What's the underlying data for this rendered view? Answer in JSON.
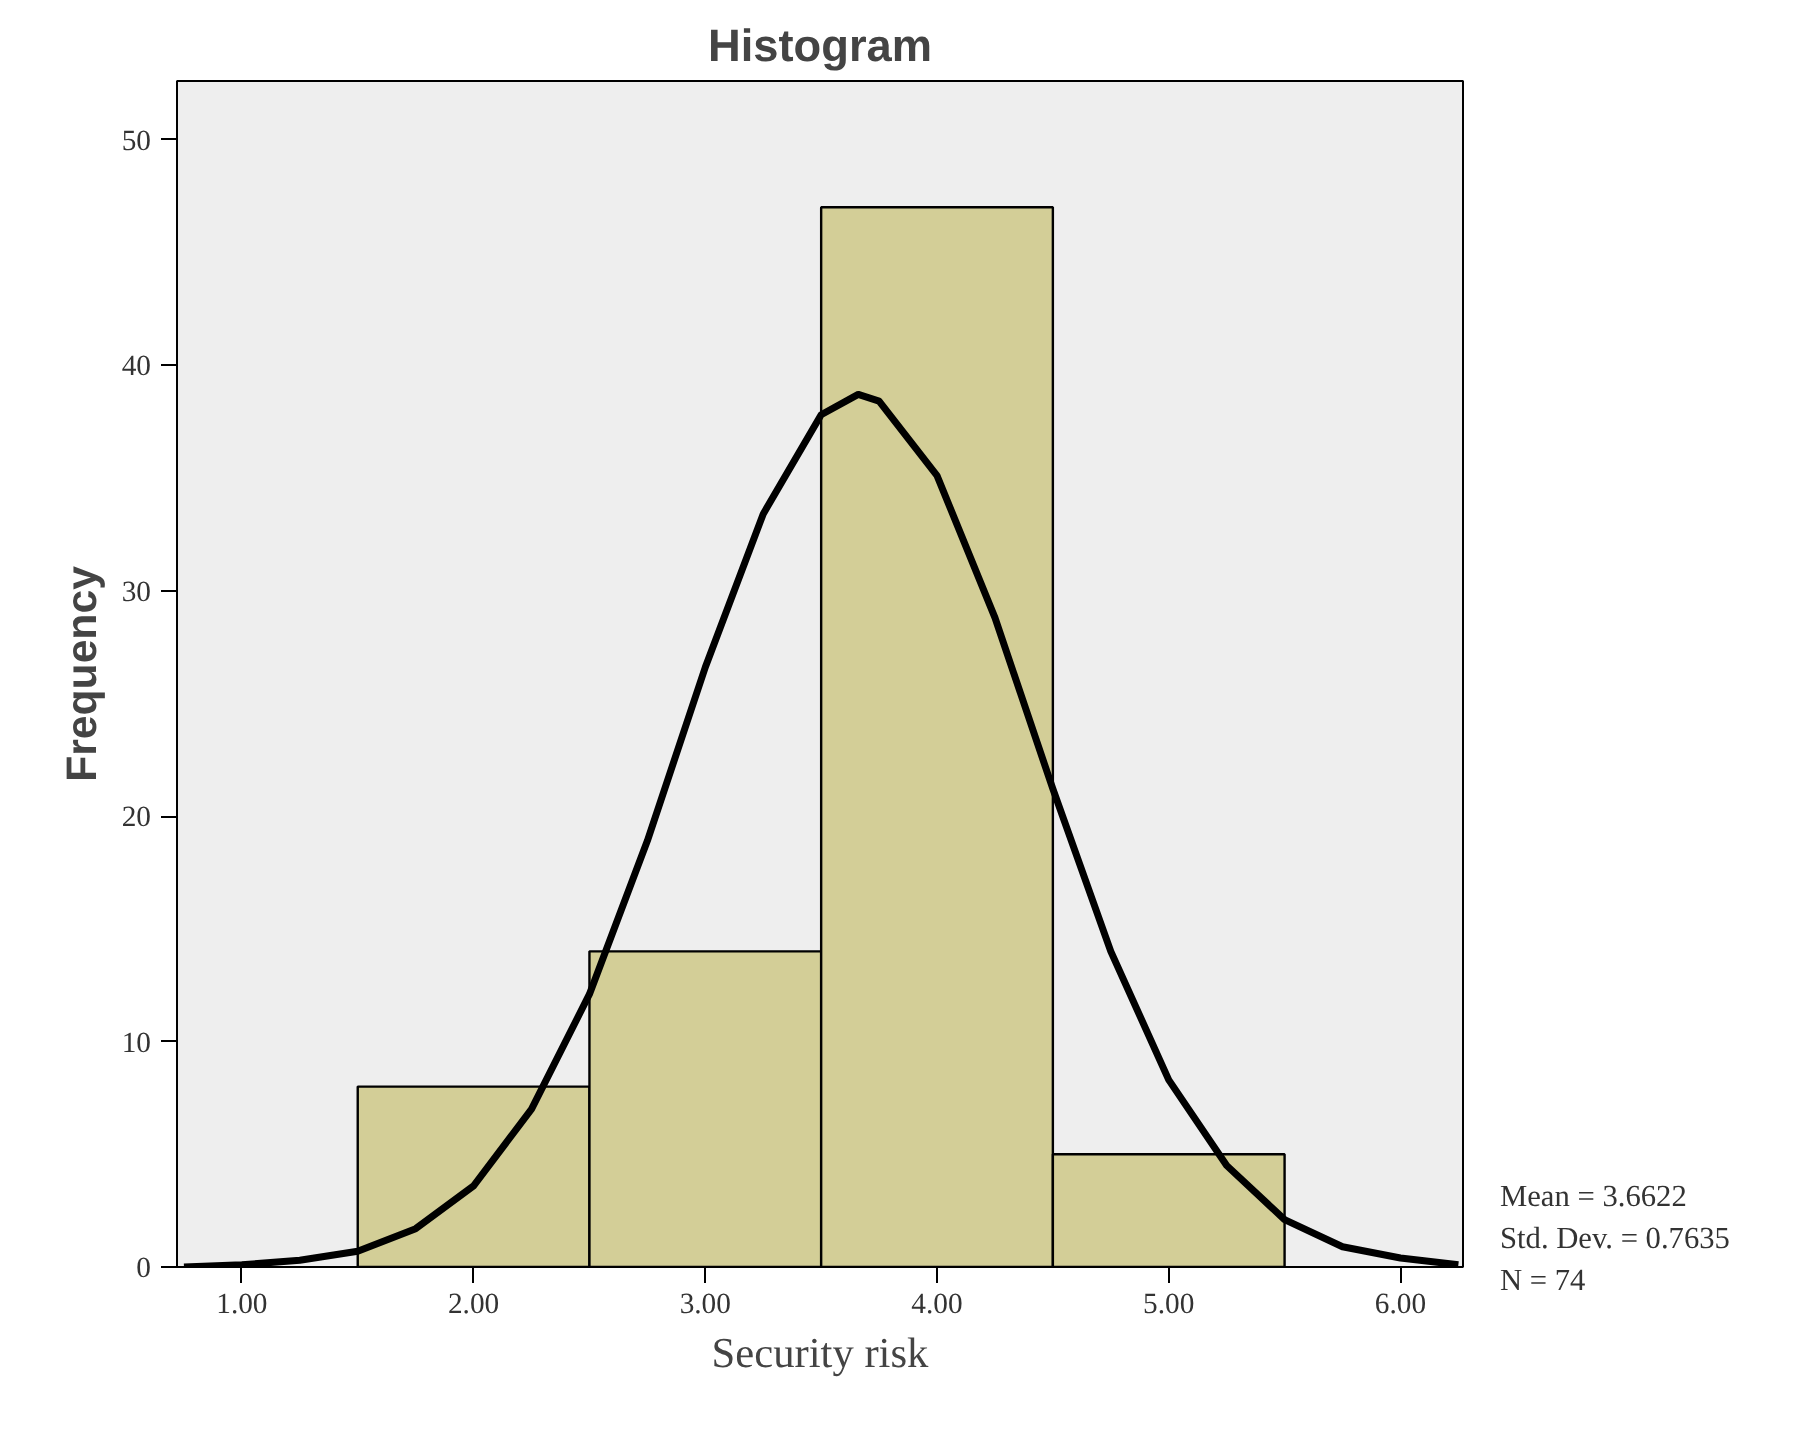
{
  "chart_data": {
    "type": "histogram",
    "title": "Histogram",
    "xlabel": "Security risk",
    "ylabel": "Frequency",
    "bins": [
      1.5,
      2.5,
      3.5,
      4.5,
      5.5
    ],
    "values": [
      8,
      14,
      47,
      5
    ],
    "color": "#d3ce97",
    "series": [
      {
        "type": "line",
        "color": "#000000",
        "x": [
          0.75,
          1.0,
          1.25,
          1.5,
          1.75,
          2.0,
          2.25,
          2.5,
          2.75,
          3.0,
          3.25,
          3.5,
          3.66,
          3.75,
          4.0,
          4.25,
          4.5,
          4.75,
          5.0,
          5.25,
          5.5,
          5.75,
          6.0,
          6.25
        ],
        "values": [
          0.0,
          0.1,
          0.3,
          0.7,
          1.7,
          3.6,
          7.0,
          12.1,
          18.9,
          26.6,
          33.4,
          37.8,
          38.7,
          38.4,
          35.1,
          28.8,
          21.2,
          14.0,
          8.3,
          4.5,
          2.1,
          0.9,
          0.4,
          0.1
        ]
      }
    ],
    "xlim": [
      0.72,
      6.27
    ],
    "ylim": [
      0,
      52.6
    ],
    "xticks": [
      {
        "value": 1,
        "label": "1.00"
      },
      {
        "value": 2,
        "label": "2.00"
      },
      {
        "value": 3,
        "label": "3.00"
      },
      {
        "value": 4,
        "label": "4.00"
      },
      {
        "value": 5,
        "label": "5.00"
      },
      {
        "value": 6,
        "label": "6.00"
      }
    ],
    "yticks": [
      0,
      10,
      20,
      30,
      40,
      50
    ],
    "grid": false,
    "annotations": [
      "Mean = 3.6622",
      "Std. Dev. = 0.7635",
      "N = 74"
    ]
  }
}
